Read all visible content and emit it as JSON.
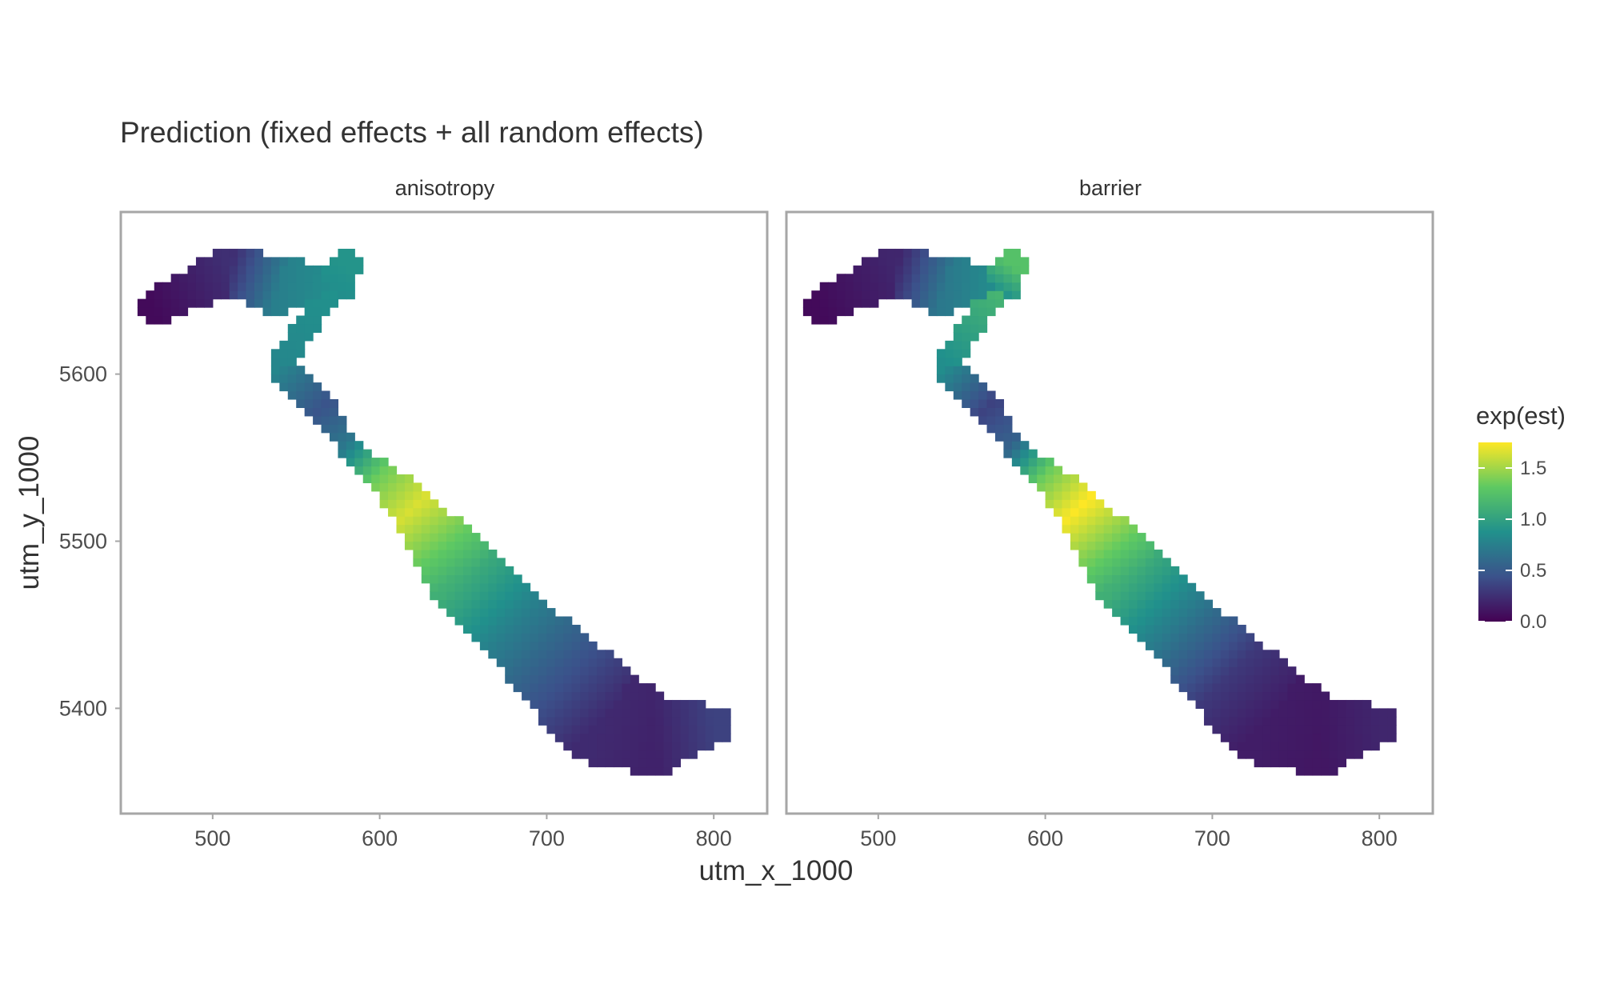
{
  "chart_data": {
    "type": "heatmap",
    "title": "Prediction (fixed effects + all random effects)",
    "xlabel": "utm_x_1000",
    "ylabel": "utm_y_1000",
    "xlim": [
      445,
      832
    ],
    "ylim": [
      5337,
      5697
    ],
    "x_ticks": [
      "500",
      "600",
      "700",
      "800"
    ],
    "x_tick_values": [
      500,
      600,
      700,
      800
    ],
    "y_ticks": [
      "5400",
      "5500",
      "5600"
    ],
    "y_tick_values": [
      5400,
      5500,
      5600
    ],
    "grid": false,
    "legend": {
      "title": "exp(est)",
      "placement": "right",
      "labels": [
        "0.0",
        "0.5",
        "1.0",
        "1.5"
      ],
      "label_values": [
        0.0,
        0.5,
        1.0,
        1.5
      ],
      "range": [
        0.0,
        1.75
      ],
      "colormap": "viridis",
      "colors": [
        "#440154",
        "#3b528b",
        "#21918c",
        "#5ec962",
        "#fde725"
      ]
    },
    "panels": [
      {
        "name": "anisotropy",
        "centerline": [
          [
            465,
            5640
          ],
          [
            510,
            5662
          ],
          [
            540,
            5652
          ],
          [
            570,
            5650
          ],
          [
            580,
            5665
          ],
          [
            540,
            5605
          ],
          [
            565,
            5580
          ],
          [
            580,
            5558
          ],
          [
            600,
            5540
          ],
          [
            620,
            5520
          ],
          [
            650,
            5480
          ],
          [
            680,
            5450
          ],
          [
            710,
            5420
          ],
          [
            735,
            5395
          ],
          [
            765,
            5385
          ],
          [
            800,
            5390
          ]
        ],
        "halfwidth": [
          10,
          14,
          18,
          14,
          8,
          7,
          8,
          6,
          8,
          14,
          22,
          22,
          28,
          30,
          25,
          12
        ],
        "values": [
          0.05,
          0.25,
          0.75,
          0.85,
          0.9,
          0.8,
          0.45,
          0.7,
          1.35,
          1.65,
          1.1,
          0.75,
          0.45,
          0.22,
          0.18,
          0.35
        ]
      },
      {
        "name": "barrier",
        "centerline": [
          [
            465,
            5640
          ],
          [
            510,
            5662
          ],
          [
            540,
            5652
          ],
          [
            570,
            5650
          ],
          [
            580,
            5665
          ],
          [
            540,
            5605
          ],
          [
            565,
            5580
          ],
          [
            580,
            5558
          ],
          [
            600,
            5540
          ],
          [
            620,
            5520
          ],
          [
            650,
            5480
          ],
          [
            680,
            5450
          ],
          [
            710,
            5420
          ],
          [
            735,
            5395
          ],
          [
            765,
            5385
          ],
          [
            800,
            5390
          ]
        ],
        "halfwidth": [
          10,
          14,
          18,
          14,
          8,
          7,
          8,
          6,
          8,
          14,
          22,
          22,
          28,
          30,
          25,
          12
        ],
        "values": [
          0.05,
          0.2,
          0.7,
          0.85,
          1.25,
          0.85,
          0.35,
          0.55,
          1.35,
          1.75,
          1.1,
          0.7,
          0.3,
          0.15,
          0.12,
          0.2
        ]
      }
    ]
  }
}
